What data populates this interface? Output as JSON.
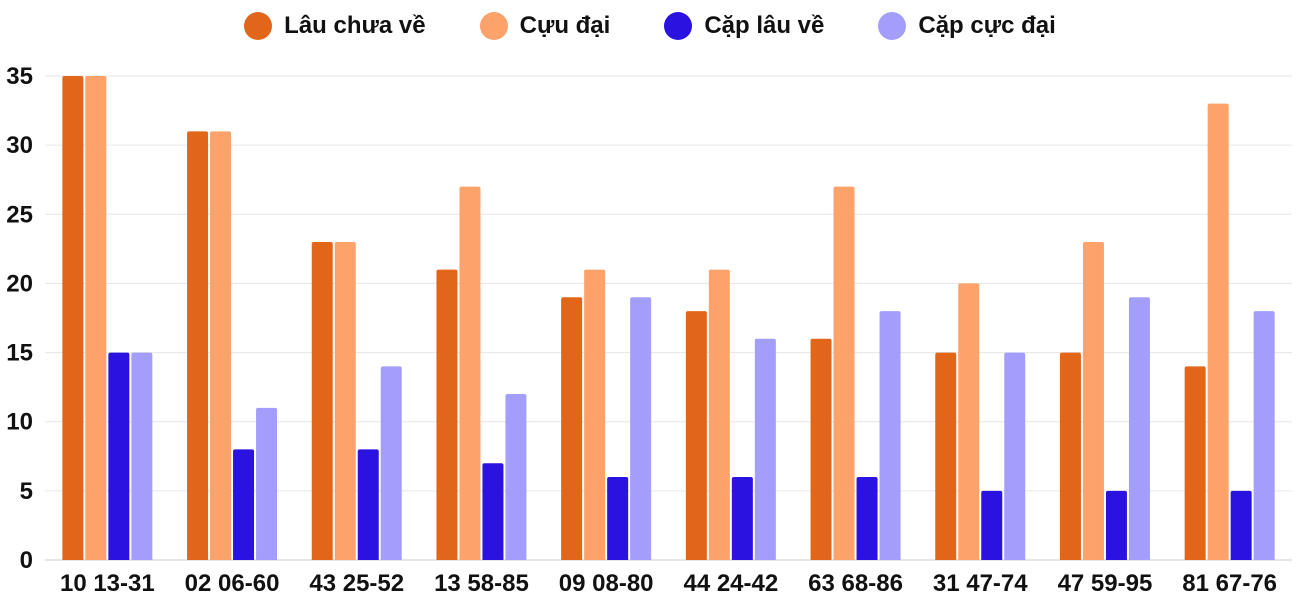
{
  "chart_data": {
    "type": "bar",
    "title": "",
    "xlabel": "",
    "ylabel": "",
    "ylim": [
      0,
      35
    ],
    "yticks": [
      0,
      5,
      10,
      15,
      20,
      25,
      30,
      35
    ],
    "grid": true,
    "legend_position": "top-center",
    "categories": [
      "10 13-31",
      "02 06-60",
      "43 25-52",
      "13 58-85",
      "09 08-80",
      "44 24-42",
      "63 68-86",
      "31 47-74",
      "47 59-95",
      "81 67-76"
    ],
    "series": [
      {
        "name": "Lâu chưa về",
        "color": "#E2661A",
        "values": [
          35,
          31,
          23,
          21,
          19,
          18,
          16,
          15,
          15,
          14
        ]
      },
      {
        "name": "Cựu đại",
        "color": "#FDA26B",
        "values": [
          35,
          31,
          23,
          27,
          21,
          21,
          27,
          20,
          23,
          33
        ]
      },
      {
        "name": "Cặp lâu về",
        "color": "#2A13E1",
        "values": [
          15,
          8,
          8,
          7,
          6,
          6,
          6,
          5,
          5,
          5
        ]
      },
      {
        "name": "Cặp cực đại",
        "color": "#A39EFC",
        "values": [
          15,
          11,
          14,
          12,
          19,
          16,
          18,
          15,
          19,
          18
        ]
      }
    ]
  }
}
